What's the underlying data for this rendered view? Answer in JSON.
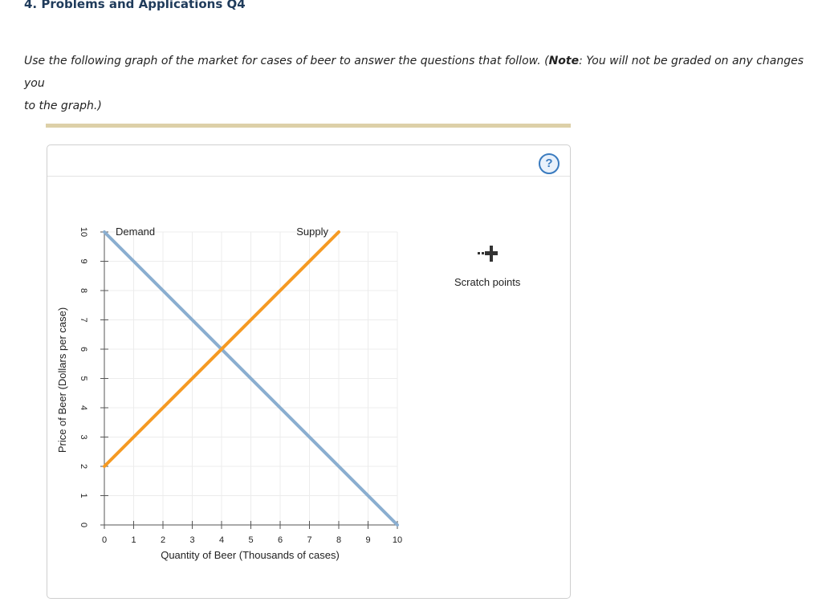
{
  "question": {
    "title": "4. Problems and Applications Q4",
    "instructions_pre": "Use the following graph of the market for cases of beer to answer the questions that follow. (",
    "note_label": "Note",
    "instructions_post": ": You will not be graded on any changes you",
    "instructions_line2": "to the graph.)"
  },
  "help": {
    "label": "?"
  },
  "scratch": {
    "label": "Scratch points",
    "icon": "plus-with-dots-icon"
  },
  "colors": {
    "demand": "#8aaed0",
    "supply": "#f59a23",
    "accent": "#3a7bbf"
  },
  "chart_data": {
    "type": "line",
    "xlabel": "Quantity of Beer (Thousands of cases)",
    "ylabel": "Price of Beer (Dollars per case)",
    "xlim": [
      0,
      10
    ],
    "ylim": [
      0,
      10
    ],
    "xticks": [
      "0",
      "1",
      "2",
      "3",
      "4",
      "5",
      "6",
      "7",
      "8",
      "9",
      "10"
    ],
    "yticks": [
      "0",
      "1",
      "2",
      "3",
      "4",
      "5",
      "6",
      "7",
      "8",
      "9",
      "10"
    ],
    "grid": true,
    "series": [
      {
        "name": "Demand",
        "points": [
          [
            0,
            10
          ],
          [
            10,
            0
          ]
        ]
      },
      {
        "name": "Supply",
        "points": [
          [
            0,
            2
          ],
          [
            8,
            10
          ]
        ]
      }
    ]
  }
}
